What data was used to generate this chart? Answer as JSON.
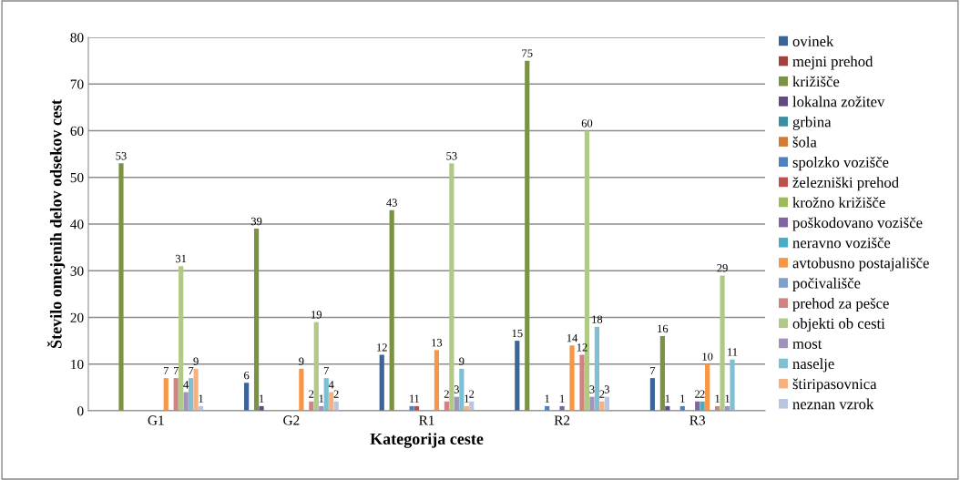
{
  "chart_data": {
    "type": "bar",
    "xlabel": "Kategorija ceste",
    "ylabel": "Število omejenih delov odsekov cest",
    "categories": [
      "G1",
      "G2",
      "R1",
      "R2",
      "R3"
    ],
    "ylim": [
      0,
      80
    ],
    "yticks": [
      0,
      10,
      20,
      30,
      40,
      50,
      60,
      70,
      80
    ],
    "grid": "y",
    "legend": "right",
    "series": [
      {
        "name": "ovinek",
        "color": "#3b6598",
        "values": [
          0,
          6,
          12,
          15,
          7
        ],
        "value_labels": [
          null,
          "6",
          "12",
          "15",
          "7"
        ]
      },
      {
        "name": "mejni prehod",
        "color": "#a5403c",
        "values": [
          0,
          0,
          0,
          0,
          0
        ],
        "value_labels": [
          null,
          null,
          null,
          null,
          null
        ]
      },
      {
        "name": "križišče",
        "color": "#7a9343",
        "values": [
          53,
          39,
          43,
          75,
          16
        ],
        "value_labels": [
          "53",
          "39",
          "43",
          "75",
          "16"
        ]
      },
      {
        "name": "lokalna zožitev",
        "color": "#5f4b81",
        "values": [
          0,
          1,
          0,
          0,
          1
        ],
        "value_labels": [
          null,
          "1",
          null,
          null,
          "1"
        ]
      },
      {
        "name": "grbina",
        "color": "#3a8fa3",
        "values": [
          0,
          0,
          0,
          0,
          0
        ],
        "value_labels": [
          null,
          null,
          null,
          null,
          null
        ]
      },
      {
        "name": "šola",
        "color": "#d07a32",
        "values": [
          0,
          0,
          0,
          0,
          0
        ],
        "value_labels": [
          null,
          null,
          null,
          null,
          null
        ]
      },
      {
        "name": "spolzko vozišče",
        "color": "#4f81bd",
        "values": [
          0,
          0,
          1,
          1,
          1
        ],
        "value_labels": [
          null,
          null,
          "1",
          "1",
          "1"
        ]
      },
      {
        "name": "železniški prehod",
        "color": "#c0504d",
        "values": [
          0,
          0,
          1,
          0,
          0
        ],
        "value_labels": [
          null,
          null,
          "1",
          null,
          null
        ]
      },
      {
        "name": "krožno križišče",
        "color": "#9bbb59",
        "values": [
          0,
          0,
          0,
          0,
          0
        ],
        "value_labels": [
          null,
          null,
          null,
          null,
          null
        ]
      },
      {
        "name": "poškodovano vozišče",
        "color": "#8064a2",
        "values": [
          0,
          0,
          0,
          1,
          2
        ],
        "value_labels": [
          null,
          null,
          null,
          "1",
          "2"
        ]
      },
      {
        "name": "neravno vozišče",
        "color": "#4bacc6",
        "values": [
          0,
          0,
          0,
          0,
          2
        ],
        "value_labels": [
          null,
          null,
          null,
          null,
          "2"
        ]
      },
      {
        "name": "avtobusno postajališče",
        "color": "#f79646",
        "values": [
          7,
          9,
          13,
          14,
          10
        ],
        "value_labels": [
          "7",
          "9",
          "13",
          "14",
          "10"
        ]
      },
      {
        "name": "počivališče",
        "color": "#7f9fcf",
        "values": [
          0,
          0,
          0,
          0,
          0
        ],
        "value_labels": [
          null,
          null,
          null,
          null,
          null
        ]
      },
      {
        "name": "prehod za pešce",
        "color": "#d38282",
        "values": [
          7,
          2,
          2,
          12,
          1
        ],
        "value_labels": [
          "7",
          "2",
          "2",
          "12",
          "1"
        ]
      },
      {
        "name": "objekti ob cesti",
        "color": "#b0c986",
        "values": [
          31,
          19,
          53,
          60,
          29
        ],
        "value_labels": [
          "31",
          "19",
          "53",
          "60",
          "29"
        ]
      },
      {
        "name": "most",
        "color": "#a094bc",
        "values": [
          4,
          1,
          3,
          3,
          1
        ],
        "value_labels": [
          "4",
          "1",
          "3",
          "3",
          "1"
        ]
      },
      {
        "name": "naselje",
        "color": "#7fbfd4",
        "values": [
          7,
          7,
          9,
          18,
          11
        ],
        "value_labels": [
          "7",
          "7",
          "9",
          "18",
          "11"
        ]
      },
      {
        "name": "štiripasovnica",
        "color": "#f9b07f",
        "values": [
          9,
          4,
          1,
          2,
          0
        ],
        "value_labels": [
          "9",
          "4",
          "1",
          "2",
          null
        ]
      },
      {
        "name": "neznan vzrok",
        "color": "#b9c6e0",
        "values": [
          1,
          2,
          2,
          3,
          0
        ],
        "value_labels": [
          "1",
          "2",
          "2",
          "3",
          null
        ]
      }
    ]
  }
}
